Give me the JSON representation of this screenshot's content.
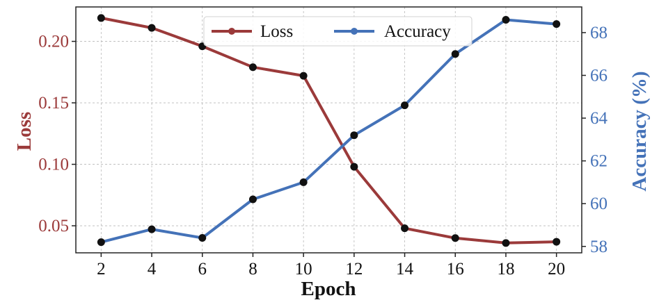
{
  "chart_data": {
    "type": "line",
    "x": [
      2,
      4,
      6,
      8,
      10,
      12,
      14,
      16,
      18,
      20
    ],
    "xlabel": "Epoch",
    "xlim": [
      1,
      21
    ],
    "xticks": [
      "2",
      "4",
      "6",
      "8",
      "10",
      "12",
      "14",
      "16",
      "18",
      "20"
    ],
    "grid": true,
    "legend_position": "top-center",
    "marker_color": "#111111",
    "series": [
      {
        "name": "Loss",
        "axis": "left",
        "color": "#9b3a3a",
        "values": [
          0.219,
          0.211,
          0.196,
          0.179,
          0.172,
          0.098,
          0.048,
          0.04,
          0.036,
          0.037
        ]
      },
      {
        "name": "Accuracy",
        "axis": "right",
        "color": "#4472b8",
        "values": [
          58.2,
          58.8,
          58.4,
          60.2,
          61.0,
          63.2,
          64.6,
          67.0,
          68.6,
          68.4
        ]
      }
    ],
    "left_axis": {
      "label": "Loss",
      "ylim": [
        0.028,
        0.228
      ],
      "ticks": [
        "0.05",
        "0.10",
        "0.15",
        "0.20"
      ],
      "color": "#9b3a3a"
    },
    "right_axis": {
      "label": "Accuracy (%)",
      "ylim": [
        57.7,
        69.2
      ],
      "ticks": [
        "58",
        "60",
        "62",
        "64",
        "66",
        "68"
      ],
      "color": "#4472b8"
    }
  }
}
